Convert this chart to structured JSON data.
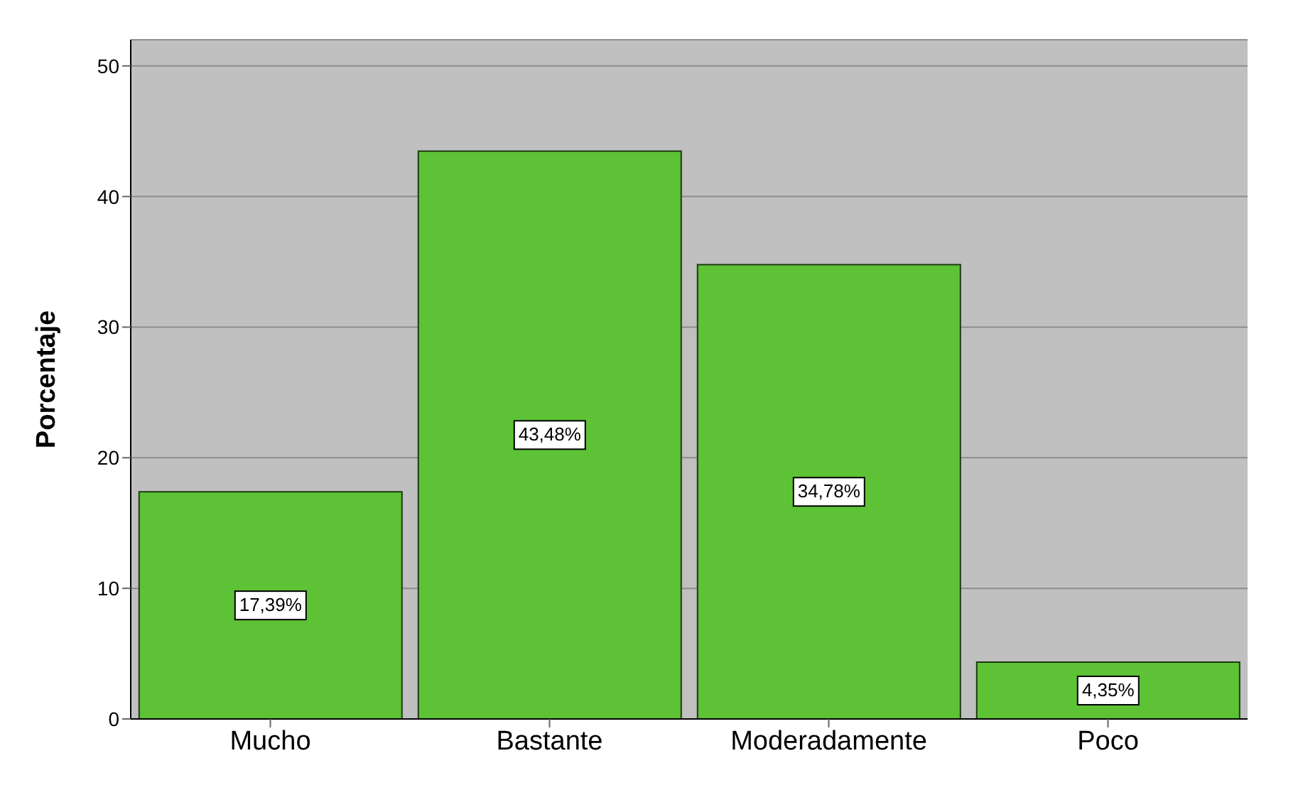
{
  "chart_data": {
    "type": "bar",
    "ylabel": "Porcentaje",
    "categories": [
      "Mucho",
      "Bastante",
      "Moderadamente",
      "Poco"
    ],
    "values": [
      17.39,
      43.48,
      34.78,
      4.35
    ],
    "value_labels": [
      "17,39%",
      "43,48%",
      "34,78%",
      "4,35%"
    ],
    "color": "#5dc236",
    "ylim": [
      0,
      52
    ],
    "yticks": [
      0,
      10,
      20,
      30,
      40,
      50
    ],
    "grid": "y"
  }
}
